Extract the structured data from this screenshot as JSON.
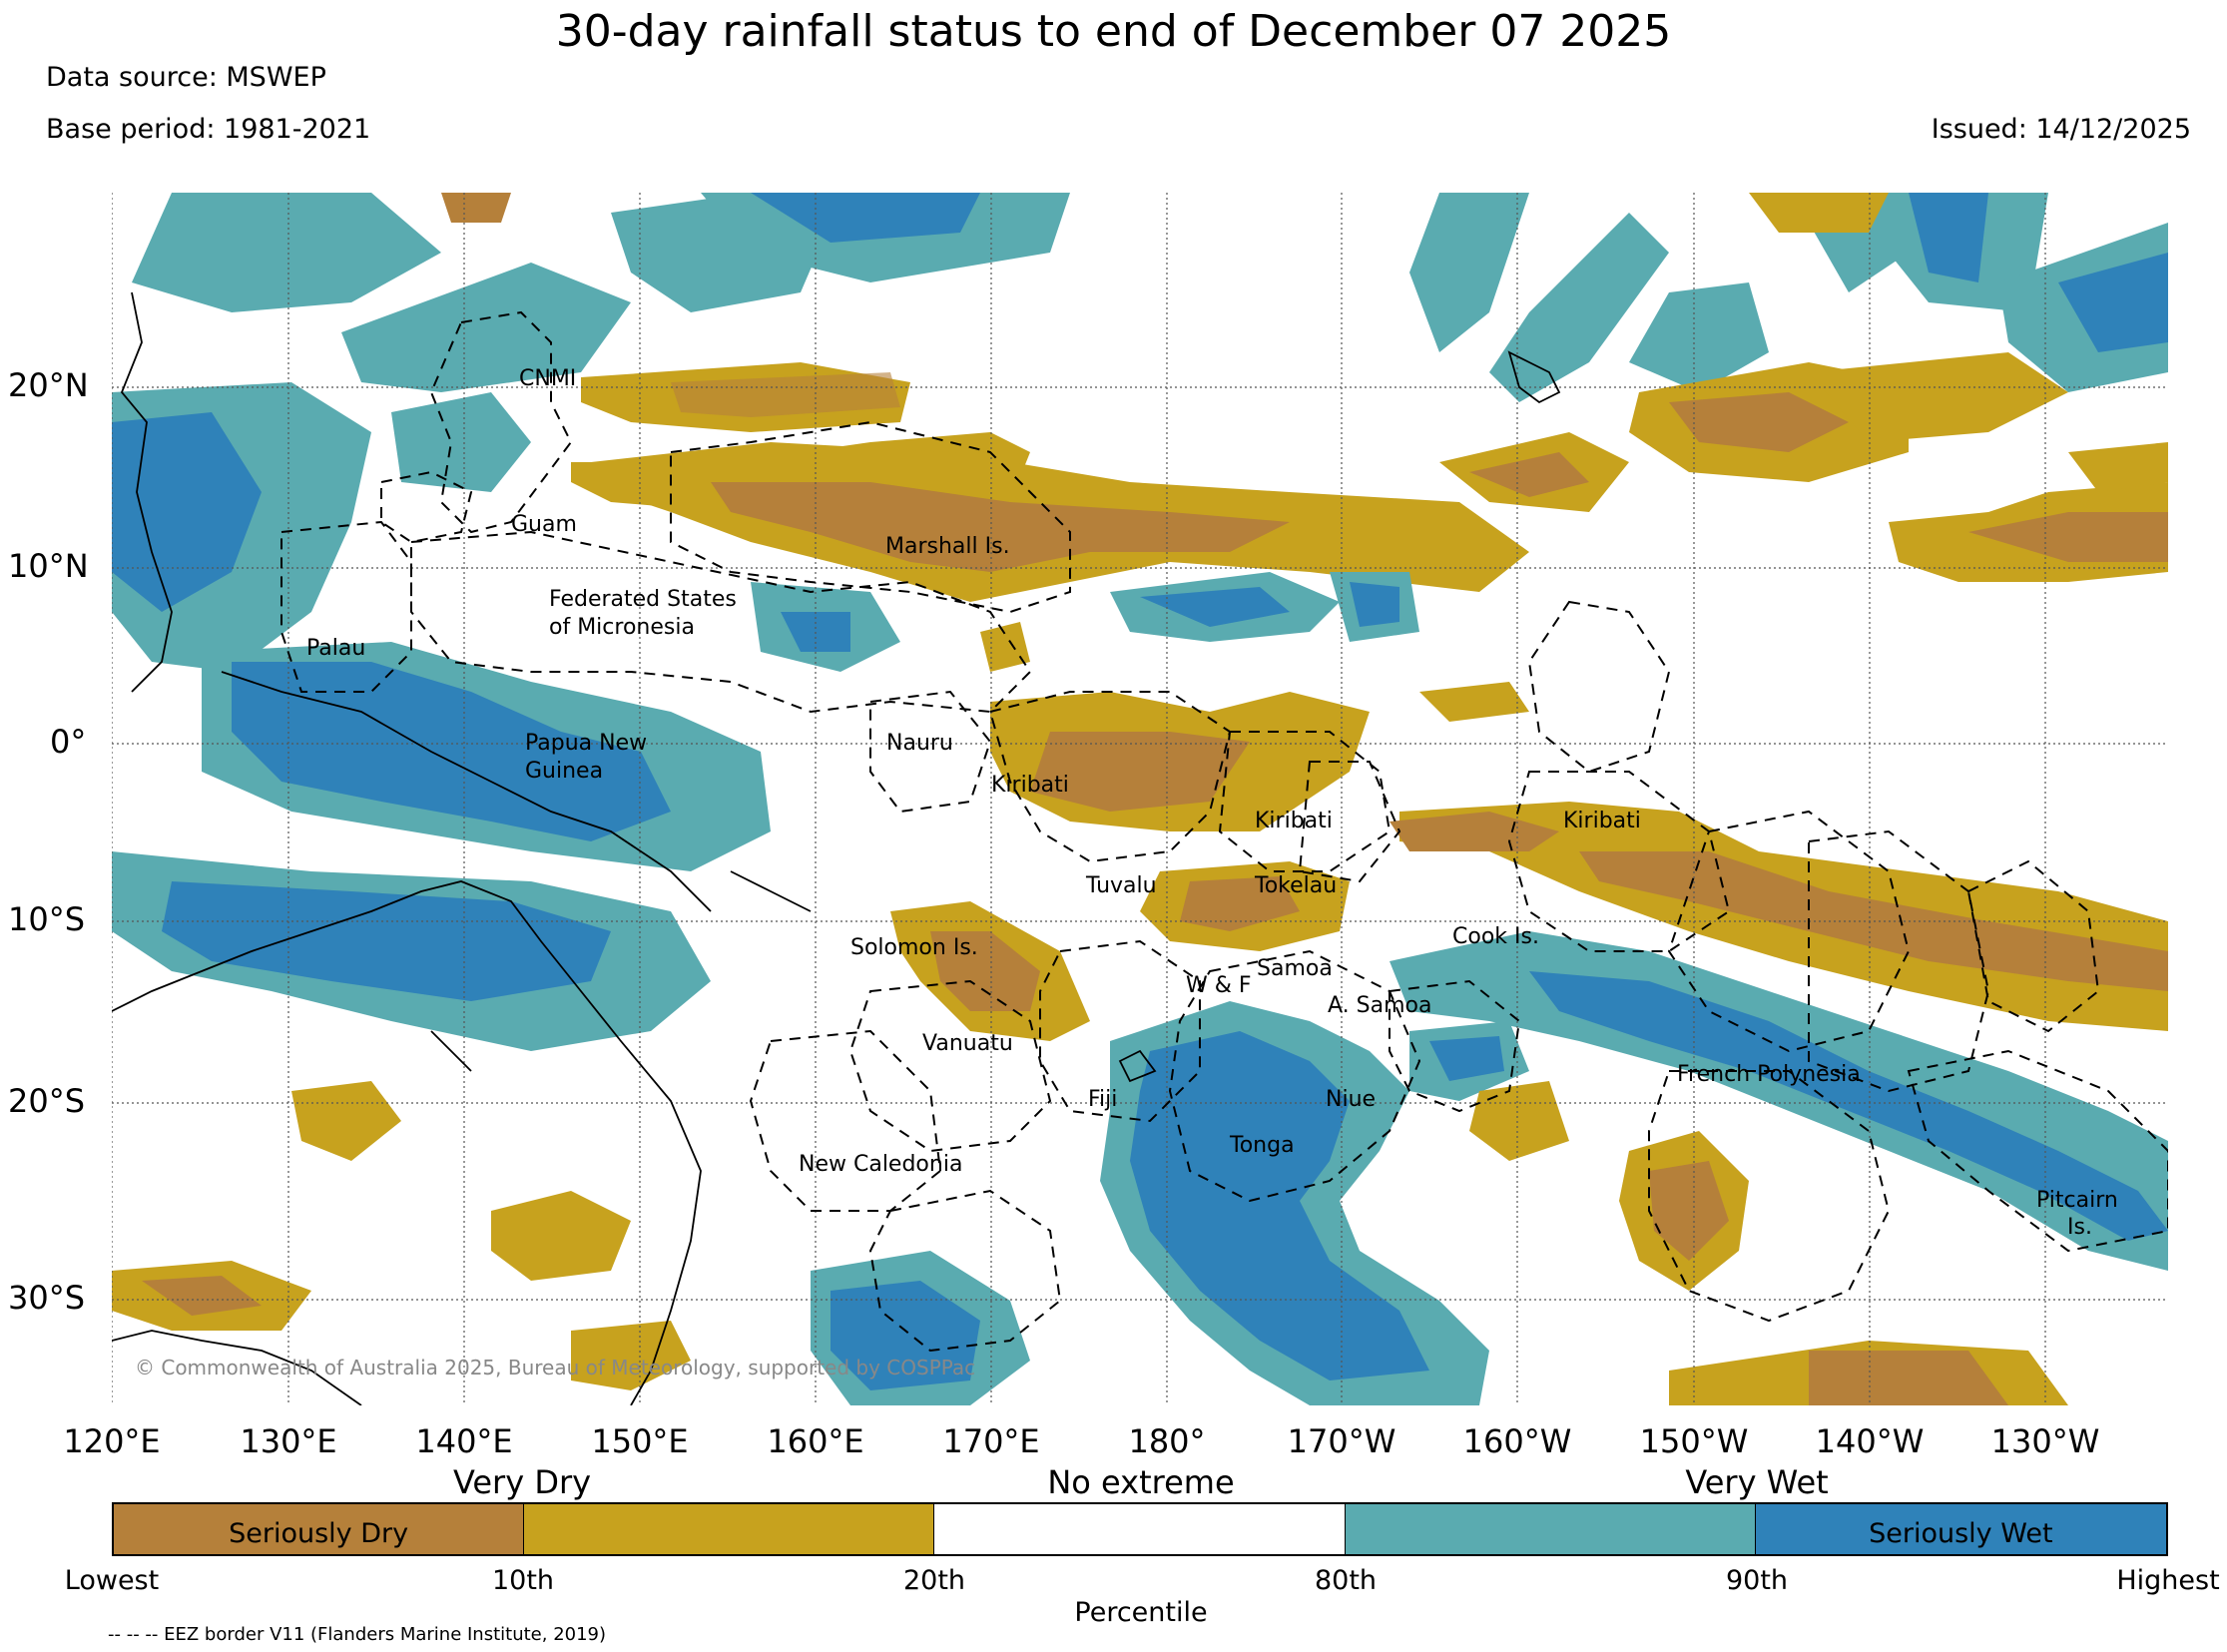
{
  "header": {
    "title": "30-day rainfall status to end of December 07 2025",
    "data_source": "Data source: MSWEP",
    "base_period": "Base period: 1981-2021",
    "issued": "Issued: 14/12/2025"
  },
  "map": {
    "latitude_labels": [
      "20°N",
      "10°N",
      "0°",
      "10°S",
      "20°S",
      "30°S"
    ],
    "longitude_labels": [
      "120°E",
      "130°E",
      "140°E",
      "150°E",
      "160°E",
      "170°E",
      "180°",
      "170°W",
      "160°W",
      "150°W",
      "140°W",
      "130°W"
    ],
    "region_labels": {
      "cnmi": "CNMI",
      "guam": "Guam",
      "marshall": "Marshall Is.",
      "fsm_line1": "Federated States",
      "fsm_line2": "of Micronesia",
      "palau": "Palau",
      "png_line1": "Papua New",
      "png_line2": "Guinea",
      "nauru": "Nauru",
      "kiribati_west": "Kiribati",
      "kiribati_central": "Kiribati",
      "kiribati_east": "Kiribati",
      "tuvalu": "Tuvalu",
      "tokelau": "Tokelau",
      "solomon": "Solomon Is.",
      "cook": "Cook Is.",
      "samoa": "Samoa",
      "wf": "W & F",
      "asamoa": "A. Samoa",
      "vanuatu": "Vanuatu",
      "fiji": "Fiji",
      "niue": "Niue",
      "tonga": "Tonga",
      "french_polynesia": "French Polynesia",
      "new_caledonia": "New Caledonia",
      "pitcairn_line1": "Pitcairn",
      "pitcairn_line2": "Is."
    },
    "copyright": "© Commonwealth of Australia 2025, Bureau of Meteorology, supported by COSPPac"
  },
  "legend": {
    "category_titles": {
      "very_dry": "Very Dry",
      "no_extreme": "No extreme",
      "very_wet": "Very Wet"
    },
    "segments": [
      {
        "label": "Seriously Dry",
        "color": "#b5803a"
      },
      {
        "label": "",
        "color": "#c7a21e"
      },
      {
        "label": "",
        "color": "#ffffff"
      },
      {
        "label": "",
        "color": "#5aabb0"
      },
      {
        "label": "Seriously Wet",
        "color": "#2f82b9"
      }
    ],
    "ticks": [
      "Lowest",
      "10th",
      "20th",
      "80th",
      "90th",
      "Highest"
    ],
    "axis_title": "Percentile",
    "eez_note": "-- -- -- EEZ border V11 (Flanders Marine Institute, 2019)"
  }
}
